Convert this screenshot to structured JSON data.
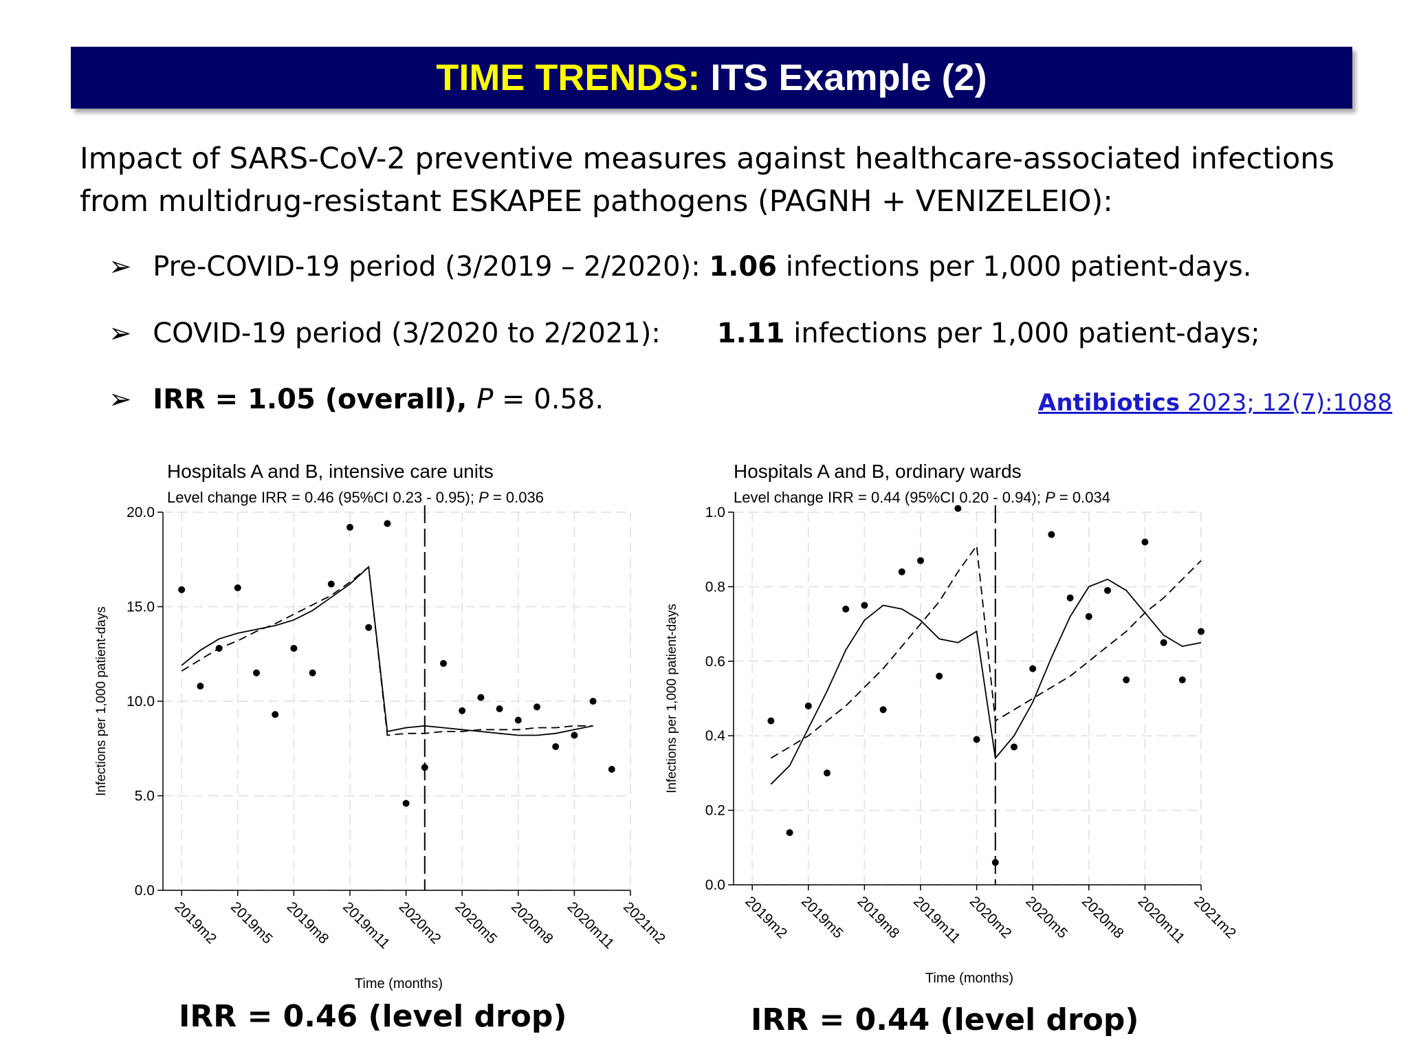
{
  "header": {
    "title_highlight": "TIME TRENDS:",
    "title_rest": "ITS Example (2)"
  },
  "intro": {
    "line1": "Impact of SARS-CoV-2 preventive measures against healthcare-associated infections",
    "line2": "from multidrug-resistant ESKAPEE pathogens (PAGNH + VENIZELEIO):"
  },
  "bullets": [
    {
      "marker": "➢",
      "pre": "Pre-COVID-19 period (3/2019 – 2/2020): ",
      "value": "1.06",
      "post": " infections per 1,000 patient-days."
    },
    {
      "marker": "➢",
      "pre": "COVID-19 period (3/2020 to 2/2021):",
      "value": "1.11",
      "post": " infections per 1,000 patient-days;"
    },
    {
      "marker": "➢",
      "bold": "IRR = 1.05 (overall), ",
      "p_label": "P",
      "rest": " = 0.58."
    }
  ],
  "reference": {
    "journal": "Antibiotics",
    "citation": " 2023; 12(7):1088"
  },
  "irr_labels": [
    "IRR = 0.46 (level drop)",
    "IRR = 0.44 (level drop)"
  ],
  "chart_data": [
    {
      "type": "scatter",
      "title": "Hospitals A and B, intensive care units",
      "subtitle_pre": "Level change IRR = 0.46 (95%CI 0.23 - 0.95); ",
      "subtitle_p": "P",
      "subtitle_post": " = 0.036",
      "xlabel": "Time (months)",
      "ylabel": "Infections per 1,000 patient-days",
      "ylim": [
        0,
        20
      ],
      "yticks": [
        "0.0",
        "5.0",
        "10.0",
        "15.0",
        "20.0"
      ],
      "ytick_values": [
        0,
        5,
        10,
        15,
        20
      ],
      "xticks": [
        "2019m2",
        "2019m5",
        "2019m8",
        "2019m11",
        "2020m2",
        "2020m5",
        "2020m8",
        "2020m11",
        "2021m2"
      ],
      "xtick_index": [
        1,
        4,
        7,
        10,
        13,
        16,
        19,
        22,
        25
      ],
      "x_index_range": [
        0,
        25
      ],
      "intervention_index": 14,
      "grid": true,
      "points": [
        [
          1,
          15.9
        ],
        [
          2,
          10.8
        ],
        [
          3,
          12.8
        ],
        [
          4,
          16.0
        ],
        [
          5,
          11.5
        ],
        [
          6,
          9.3
        ],
        [
          7,
          12.8
        ],
        [
          8,
          11.5
        ],
        [
          9,
          16.2
        ],
        [
          10,
          19.2
        ],
        [
          11,
          13.9
        ],
        [
          12,
          19.4
        ],
        [
          13,
          4.6
        ],
        [
          14,
          6.5
        ],
        [
          15,
          12.0
        ],
        [
          16,
          9.5
        ],
        [
          17,
          10.2
        ],
        [
          18,
          9.6
        ],
        [
          19,
          9.0
        ],
        [
          20,
          9.7
        ],
        [
          21,
          7.6
        ],
        [
          22,
          8.2
        ],
        [
          23,
          10.0
        ],
        [
          24,
          6.4
        ]
      ],
      "fitted": [
        [
          1,
          11.9
        ],
        [
          2,
          12.7
        ],
        [
          3,
          13.3
        ],
        [
          4,
          13.6
        ],
        [
          5,
          13.8
        ],
        [
          6,
          14.0
        ],
        [
          7,
          14.3
        ],
        [
          8,
          14.8
        ],
        [
          9,
          15.5
        ],
        [
          10,
          16.2
        ],
        [
          11,
          17.1
        ],
        [
          12,
          8.4
        ],
        [
          13,
          8.6
        ],
        [
          14,
          8.7
        ],
        [
          15,
          8.6
        ],
        [
          16,
          8.5
        ],
        [
          17,
          8.4
        ],
        [
          18,
          8.3
        ],
        [
          19,
          8.2
        ],
        [
          20,
          8.2
        ],
        [
          21,
          8.3
        ],
        [
          22,
          8.5
        ],
        [
          23,
          8.7
        ]
      ],
      "counterfactual": [
        [
          1,
          11.6
        ],
        [
          2,
          12.2
        ],
        [
          3,
          12.8
        ],
        [
          4,
          13.2
        ],
        [
          5,
          13.7
        ],
        [
          6,
          14.1
        ],
        [
          7,
          14.6
        ],
        [
          8,
          15.1
        ],
        [
          9,
          15.6
        ],
        [
          10,
          16.3
        ],
        [
          11,
          17.1
        ],
        [
          12,
          8.2
        ],
        [
          13,
          8.3
        ],
        [
          14,
          8.3
        ],
        [
          15,
          8.4
        ],
        [
          16,
          8.4
        ],
        [
          17,
          8.5
        ],
        [
          18,
          8.5
        ],
        [
          19,
          8.5
        ],
        [
          20,
          8.6
        ],
        [
          21,
          8.6
        ],
        [
          22,
          8.7
        ],
        [
          23,
          8.7
        ]
      ]
    },
    {
      "type": "scatter",
      "title": "Hospitals A and B, ordinary wards",
      "subtitle_pre": "Level change IRR = 0.44 (95%CI 0.20 - 0.94); ",
      "subtitle_p": "P",
      "subtitle_post": " = 0.034",
      "xlabel": "Time (months)",
      "ylabel": "Infections per 1,000 patient-days",
      "ylim": [
        0,
        1
      ],
      "yticks": [
        "0.0",
        "0.2",
        "0.4",
        "0.6",
        "0.8",
        "1.0"
      ],
      "ytick_values": [
        0,
        0.2,
        0.4,
        0.6,
        0.8,
        1.0
      ],
      "xticks": [
        "2019m2",
        "2019m5",
        "2019m8",
        "2019m11",
        "2020m2",
        "2020m5",
        "2020m8",
        "2020m11",
        "2021m2"
      ],
      "xtick_index": [
        1,
        4,
        7,
        10,
        13,
        16,
        19,
        22,
        25
      ],
      "x_index_range": [
        0,
        25
      ],
      "intervention_index": 14,
      "grid": true,
      "points": [
        [
          2,
          0.44
        ],
        [
          3,
          0.14
        ],
        [
          4,
          0.48
        ],
        [
          5,
          0.3
        ],
        [
          6,
          0.74
        ],
        [
          7,
          0.75
        ],
        [
          8,
          0.47
        ],
        [
          9,
          0.84
        ],
        [
          10,
          0.87
        ],
        [
          11,
          0.56
        ],
        [
          12,
          1.01
        ],
        [
          13,
          0.39
        ],
        [
          14,
          0.06
        ],
        [
          15,
          0.37
        ],
        [
          16,
          0.58
        ],
        [
          17,
          0.94
        ],
        [
          18,
          0.77
        ],
        [
          19,
          0.72
        ],
        [
          20,
          0.79
        ],
        [
          21,
          0.55
        ],
        [
          22,
          0.92
        ],
        [
          23,
          0.65
        ],
        [
          24,
          0.55
        ],
        [
          25,
          0.68
        ]
      ],
      "fitted": [
        [
          2,
          0.27
        ],
        [
          3,
          0.32
        ],
        [
          4,
          0.42
        ],
        [
          5,
          0.52
        ],
        [
          6,
          0.63
        ],
        [
          7,
          0.71
        ],
        [
          8,
          0.75
        ],
        [
          9,
          0.74
        ],
        [
          10,
          0.71
        ],
        [
          11,
          0.66
        ],
        [
          12,
          0.65
        ],
        [
          13,
          0.68
        ],
        [
          14,
          0.34
        ],
        [
          15,
          0.4
        ],
        [
          16,
          0.49
        ],
        [
          17,
          0.61
        ],
        [
          18,
          0.72
        ],
        [
          19,
          0.8
        ],
        [
          20,
          0.82
        ],
        [
          21,
          0.79
        ],
        [
          22,
          0.73
        ],
        [
          23,
          0.67
        ],
        [
          24,
          0.64
        ],
        [
          25,
          0.65
        ]
      ],
      "counterfactual": [
        [
          2,
          0.34
        ],
        [
          3,
          0.37
        ],
        [
          4,
          0.4
        ],
        [
          5,
          0.44
        ],
        [
          6,
          0.48
        ],
        [
          7,
          0.53
        ],
        [
          8,
          0.58
        ],
        [
          9,
          0.64
        ],
        [
          10,
          0.7
        ],
        [
          11,
          0.76
        ],
        [
          12,
          0.84
        ],
        [
          13,
          0.91
        ],
        [
          14,
          0.44
        ],
        [
          15,
          0.47
        ],
        [
          16,
          0.5
        ],
        [
          17,
          0.53
        ],
        [
          18,
          0.56
        ],
        [
          19,
          0.6
        ],
        [
          20,
          0.64
        ],
        [
          21,
          0.68
        ],
        [
          22,
          0.73
        ],
        [
          23,
          0.77
        ],
        [
          24,
          0.82
        ],
        [
          25,
          0.87
        ]
      ]
    }
  ]
}
